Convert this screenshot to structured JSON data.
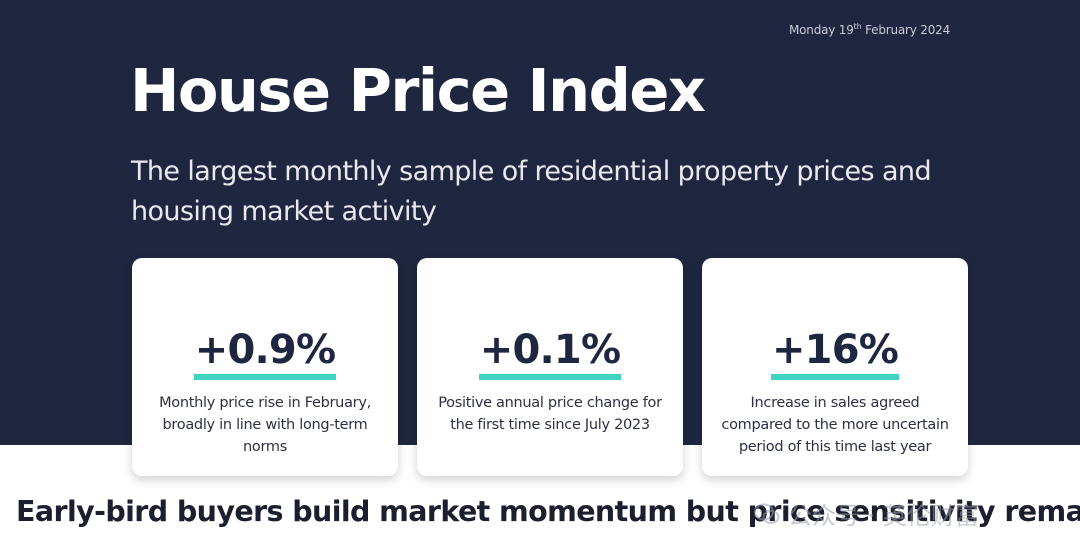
{
  "header": {
    "date_prefix": "Monday 19",
    "date_suffix": "th",
    "date_rest": " February 2024",
    "title": "House Price Index",
    "subtitle": "The largest monthly sample of residential property prices and housing market activity"
  },
  "stats": [
    {
      "value": "+0.9%",
      "description": "Monthly price rise in February, broadly in line with long-term norms"
    },
    {
      "value": "+0.1%",
      "description": "Positive annual price change for the first time since July 2023"
    },
    {
      "value": "+16%",
      "description": "Increase in sales agreed compared to the more uncertain period of this time last year"
    }
  ],
  "headline": "Early-bird buyers build market momentum but price sensitivity remains",
  "watermark": {
    "text": "公众号 · 英伦财富"
  },
  "colors": {
    "navy": "#1f2640",
    "accent_teal": "#3fd3c0",
    "white": "#ffffff"
  }
}
